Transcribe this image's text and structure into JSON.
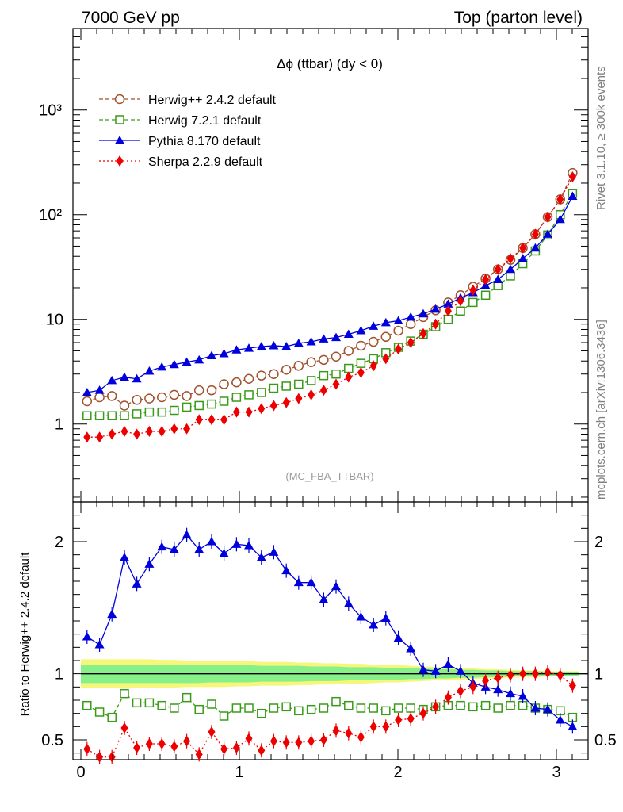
{
  "header": {
    "left": "7000 GeV pp",
    "right": "Top (parton level)"
  },
  "side_labels": {
    "rivet": "Rivet 3.1.10, ≥ 300k events",
    "mcplots": "mcplots.cern.ch [arXiv:1306.3436]"
  },
  "watermark": "(MC_FBA_TTBAR)",
  "colors": {
    "herwigpp": "#a0522d",
    "herwig7": "#3a9a1a",
    "pythia": "#0000dd",
    "sherpa": "#ee0000",
    "band_inner": "#88f088",
    "band_outer": "#f6f67a"
  },
  "chart_data": [
    {
      "type": "line",
      "title": "Δϕ (ttbar) (dy < 0)",
      "xlabel": "",
      "ylabel": "",
      "xlim": [
        -0.05,
        3.2
      ],
      "ylim": [
        0.18,
        6000
      ],
      "log_y": true,
      "y_tick_labels": [
        "1",
        "10",
        "10²",
        "10³"
      ],
      "x_tick_labels": [
        "0",
        "1",
        "2",
        "3"
      ],
      "legend": "top-left",
      "x": [
        0.039,
        0.118,
        0.196,
        0.275,
        0.353,
        0.432,
        0.511,
        0.589,
        0.668,
        0.746,
        0.825,
        0.903,
        0.982,
        1.06,
        1.139,
        1.217,
        1.296,
        1.374,
        1.453,
        1.532,
        1.61,
        1.689,
        1.767,
        1.846,
        1.924,
        2.003,
        2.081,
        2.16,
        2.238,
        2.317,
        2.395,
        2.474,
        2.553,
        2.631,
        2.71,
        2.788,
        2.867,
        2.945,
        3.024,
        3.102
      ],
      "series": [
        {
          "name": "Herwig++ 2.4.2 default",
          "marker": "circle-open",
          "dash": "dashed",
          "values": [
            1.65,
            1.8,
            1.85,
            1.5,
            1.7,
            1.75,
            1.8,
            1.9,
            1.85,
            2.1,
            2.1,
            2.4,
            2.5,
            2.7,
            2.9,
            3.0,
            3.3,
            3.6,
            3.9,
            4.1,
            4.4,
            5.0,
            5.6,
            6.1,
            6.8,
            7.8,
            9.0,
            10.5,
            12.2,
            14.5,
            17.0,
            20.5,
            24.5,
            30.0,
            37.0,
            48.0,
            65.0,
            95.0,
            140.0,
            250.0
          ]
        },
        {
          "name": "Herwig 7.2.1 default",
          "marker": "square-open",
          "dash": "dashed",
          "values": [
            1.2,
            1.2,
            1.2,
            1.2,
            1.25,
            1.3,
            1.3,
            1.35,
            1.45,
            1.5,
            1.55,
            1.65,
            1.8,
            1.9,
            2.0,
            2.2,
            2.3,
            2.4,
            2.6,
            2.9,
            3.0,
            3.4,
            3.8,
            4.2,
            4.8,
            5.4,
            6.2,
            7.2,
            8.5,
            10.0,
            12.0,
            14.5,
            17.0,
            21.0,
            26.0,
            34.0,
            45.0,
            64.0,
            100.0,
            160.0
          ]
        },
        {
          "name": "Pythia 8.170 default",
          "marker": "triangle-filled",
          "dash": "solid",
          "values": [
            2.0,
            2.1,
            2.6,
            2.8,
            2.7,
            3.2,
            3.5,
            3.7,
            3.9,
            4.1,
            4.5,
            4.7,
            5.1,
            5.3,
            5.5,
            5.6,
            5.5,
            5.9,
            6.1,
            6.5,
            6.7,
            7.2,
            7.8,
            8.6,
            9.3,
            9.7,
            10.5,
            11.3,
            12.5,
            14.0,
            16.0,
            18.0,
            21.0,
            24.0,
            30.0,
            38.0,
            48.0,
            65.0,
            90.0,
            150.0
          ]
        },
        {
          "name": "Sherpa 2.2.9 default",
          "marker": "diamond-filled",
          "dash": "dotted",
          "values": [
            0.75,
            0.75,
            0.8,
            0.85,
            0.8,
            0.85,
            0.85,
            0.9,
            0.9,
            1.1,
            1.1,
            1.1,
            1.3,
            1.3,
            1.4,
            1.5,
            1.6,
            1.75,
            1.9,
            2.1,
            2.4,
            2.8,
            3.1,
            3.6,
            4.2,
            5.2,
            6.0,
            7.3,
            9.0,
            12.0,
            15.0,
            19.0,
            24.0,
            30.0,
            38.0,
            48.0,
            65.0,
            95.0,
            140.0,
            230.0
          ]
        }
      ]
    },
    {
      "type": "line",
      "title": "",
      "xlabel": "",
      "ylabel": "Ratio to Herwig++ 2.4.2 default",
      "xlim": [
        -0.05,
        3.2
      ],
      "ylim": [
        0.35,
        2.3
      ],
      "y_tick_labels": [
        "0.5",
        "1",
        "2"
      ],
      "x_tick_labels": [
        "0",
        "1",
        "2",
        "3"
      ],
      "x": [
        0.039,
        0.118,
        0.196,
        0.275,
        0.353,
        0.432,
        0.511,
        0.589,
        0.668,
        0.746,
        0.825,
        0.903,
        0.982,
        1.06,
        1.139,
        1.217,
        1.296,
        1.374,
        1.453,
        1.532,
        1.61,
        1.689,
        1.767,
        1.846,
        1.924,
        2.003,
        2.081,
        2.16,
        2.238,
        2.317,
        2.395,
        2.474,
        2.553,
        2.631,
        2.71,
        2.788,
        2.867,
        2.945,
        3.024,
        3.102
      ],
      "band": {
        "inner_half_width": [
          0.07,
          0.07,
          0.07,
          0.07,
          0.07,
          0.07,
          0.07,
          0.07,
          0.07,
          0.07,
          0.065,
          0.065,
          0.065,
          0.065,
          0.06,
          0.06,
          0.06,
          0.06,
          0.055,
          0.055,
          0.055,
          0.05,
          0.05,
          0.05,
          0.045,
          0.045,
          0.04,
          0.04,
          0.035,
          0.035,
          0.03,
          0.03,
          0.025,
          0.025,
          0.02,
          0.02,
          0.02,
          0.015,
          0.015,
          0.015
        ],
        "outer_half_width": [
          0.11,
          0.11,
          0.11,
          0.11,
          0.11,
          0.11,
          0.105,
          0.105,
          0.1,
          0.1,
          0.1,
          0.1,
          0.095,
          0.095,
          0.09,
          0.09,
          0.09,
          0.085,
          0.085,
          0.08,
          0.08,
          0.075,
          0.075,
          0.07,
          0.065,
          0.065,
          0.06,
          0.055,
          0.05,
          0.05,
          0.045,
          0.04,
          0.035,
          0.035,
          0.03,
          0.025,
          0.025,
          0.02,
          0.02,
          0.02
        ]
      },
      "series": [
        {
          "name": "Herwig 7.2.1 default",
          "values": [
            0.76,
            0.71,
            0.67,
            0.85,
            0.78,
            0.78,
            0.76,
            0.74,
            0.82,
            0.73,
            0.77,
            0.68,
            0.74,
            0.74,
            0.7,
            0.74,
            0.75,
            0.72,
            0.73,
            0.74,
            0.79,
            0.76,
            0.74,
            0.74,
            0.72,
            0.74,
            0.74,
            0.73,
            0.75,
            0.76,
            0.76,
            0.75,
            0.76,
            0.74,
            0.76,
            0.76,
            0.74,
            0.73,
            0.72,
            0.67
          ]
        },
        {
          "name": "Pythia 8.170 default",
          "values": [
            1.28,
            1.22,
            1.45,
            1.88,
            1.68,
            1.83,
            1.96,
            1.94,
            2.05,
            1.94,
            2.0,
            1.91,
            1.98,
            1.97,
            1.88,
            1.92,
            1.78,
            1.69,
            1.69,
            1.56,
            1.66,
            1.53,
            1.43,
            1.37,
            1.42,
            1.27,
            1.19,
            1.03,
            1.02,
            1.07,
            1.02,
            0.93,
            0.9,
            0.88,
            0.85,
            0.83,
            0.74,
            0.73,
            0.65,
            0.6
          ]
        },
        {
          "name": "Sherpa 2.2.9 default",
          "values": [
            0.43,
            0.37,
            0.37,
            0.59,
            0.44,
            0.47,
            0.47,
            0.45,
            0.49,
            0.39,
            0.56,
            0.43,
            0.44,
            0.51,
            0.42,
            0.49,
            0.48,
            0.48,
            0.49,
            0.5,
            0.57,
            0.55,
            0.52,
            0.6,
            0.6,
            0.65,
            0.66,
            0.7,
            0.75,
            0.82,
            0.87,
            0.9,
            0.95,
            0.97,
            0.99,
            1.0,
            1.0,
            1.01,
            0.99,
            0.91
          ]
        }
      ]
    }
  ]
}
